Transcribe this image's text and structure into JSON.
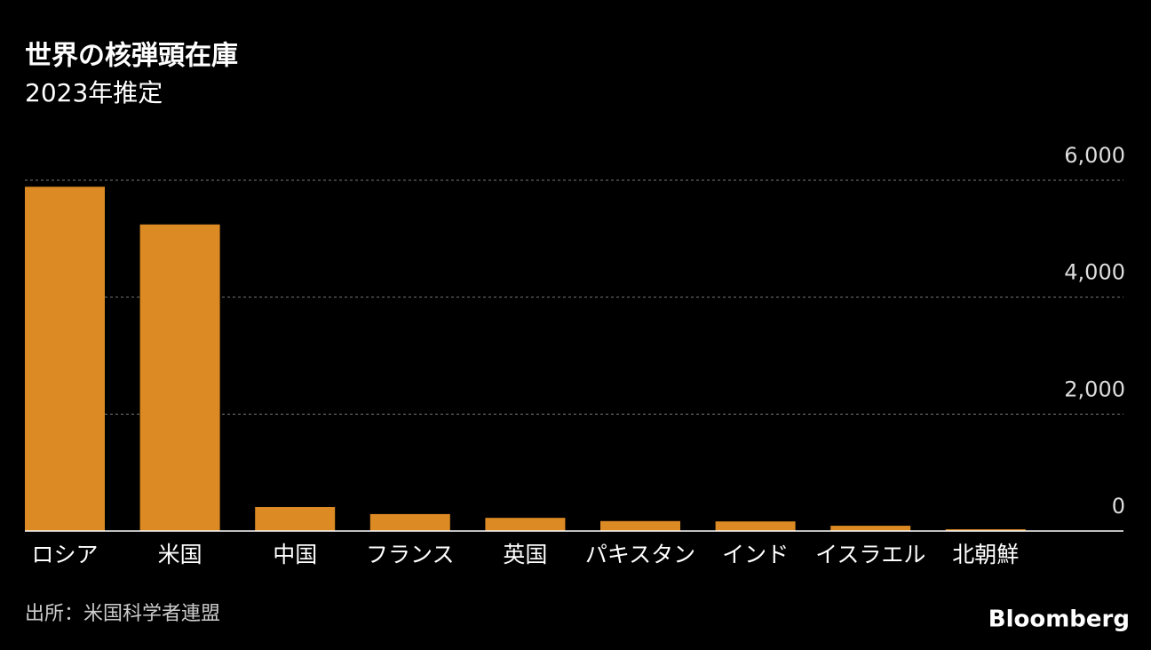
{
  "chart_data": {
    "type": "bar",
    "title": "世界の核弾頭在庫",
    "subtitle": "2023年推定",
    "categories": [
      "ロシア",
      "米国",
      "中国",
      "フランス",
      "英国",
      "パキスタン",
      "インド",
      "イスラエル",
      "北朝鮮"
    ],
    "values": [
      5889,
      5244,
      410,
      290,
      225,
      170,
      164,
      90,
      30
    ],
    "color": "#dc8a24",
    "ylim": [
      0,
      6000
    ],
    "yticks": [
      0,
      {
        "value": 2000,
        "label": "2,000"
      },
      {
        "value": 4000,
        "label": "4,000"
      },
      {
        "value": 6000,
        "label": "6,000"
      }
    ],
    "grid": true,
    "source": "出所：米国科学者連盟",
    "logo": "Bloomberg"
  }
}
